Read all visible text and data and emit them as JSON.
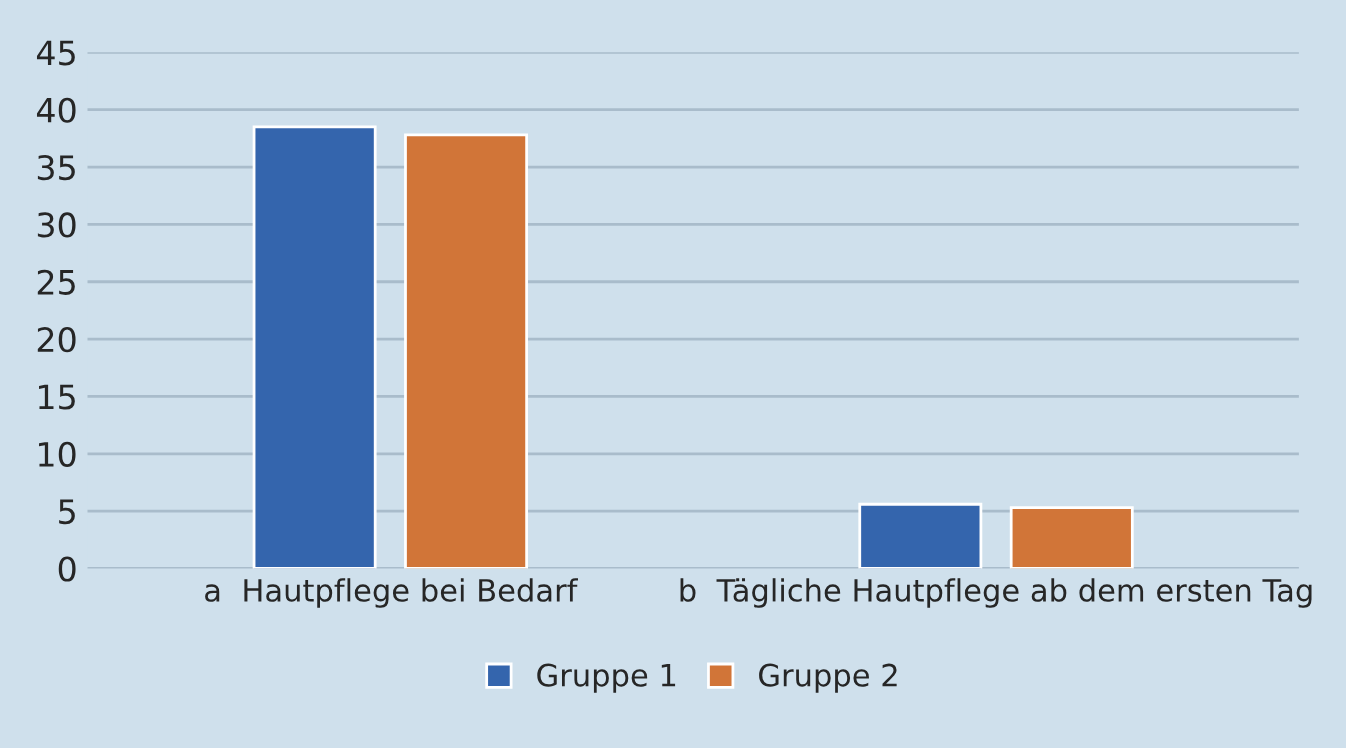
{
  "chart_data": {
    "type": "bar",
    "categories": [
      "a  Hautpflege bei Bedarf",
      "b  Tägliche Hautpflege ab dem ersten Tag"
    ],
    "series": [
      {
        "name": "Gruppe 1",
        "color": "#3465ad",
        "values": [
          38.5,
          5.6
        ]
      },
      {
        "name": "Gruppe 2",
        "color": "#d17538",
        "values": [
          37.8,
          5.3
        ]
      }
    ],
    "ylim": [
      0,
      45
    ],
    "yticks": [
      0,
      5,
      10,
      15,
      20,
      25,
      30,
      35,
      40,
      45
    ],
    "grid": "y",
    "legend": "bottom"
  }
}
